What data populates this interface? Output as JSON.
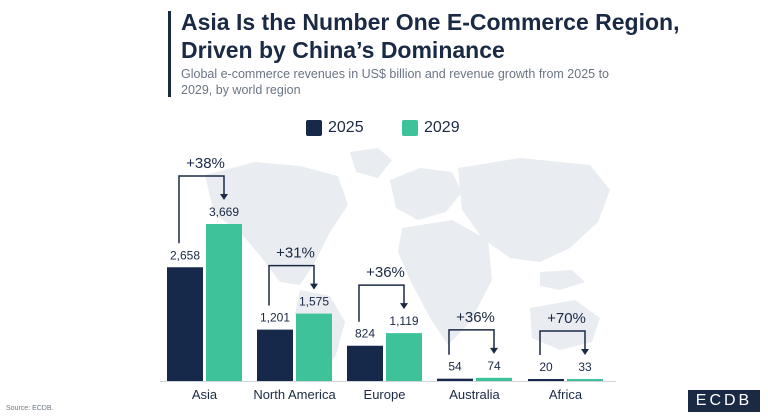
{
  "header": {
    "title": "Asia Is the Number One E-Commerce Region, Driven by China’s Dominance",
    "subtitle": "Global e-commerce revenues in US$ billion and revenue growth from 2025 to 2029, by world region"
  },
  "footer": {
    "source": "Source: ECDB.",
    "logo_text": "ECDB"
  },
  "colors": {
    "series_2025": "#16294a",
    "series_2029": "#3ec29a",
    "map": "#e9ecf1",
    "text": "#1a2a44"
  },
  "chart_data": {
    "type": "bar",
    "title": "Asia Is the Number One E-Commerce Region, Driven by China’s Dominance",
    "subtitle": "Global e-commerce revenues in US$ billion and revenue growth from 2025 to 2029, by world region",
    "categories": [
      "Asia",
      "North America",
      "Europe",
      "Australia",
      "Africa"
    ],
    "series": [
      {
        "name": "2025",
        "values": [
          2658,
          1201,
          824,
          54,
          20
        ],
        "labels": [
          "2,658",
          "1,201",
          "824",
          "54",
          "20"
        ]
      },
      {
        "name": "2029",
        "values": [
          3669,
          1575,
          1119,
          74,
          33
        ],
        "labels": [
          "3,669",
          "1,575",
          "1,119",
          "74",
          "33"
        ]
      }
    ],
    "growth_labels": [
      "+38%",
      "+31%",
      "+36%",
      "+36%",
      "+70%"
    ],
    "legend_position": "top-center",
    "background": "world map",
    "grid": false,
    "ylim": [
      0,
      3669
    ]
  }
}
